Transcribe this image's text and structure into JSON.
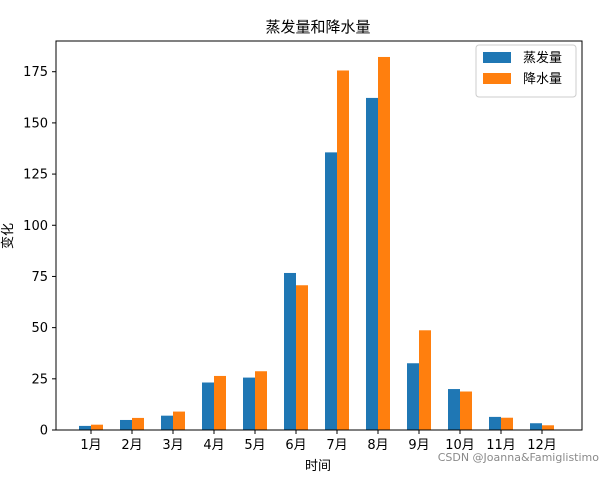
{
  "chart_data": {
    "type": "bar",
    "title": "蒸发量和降水量",
    "xlabel": "时间",
    "ylabel": "变化",
    "categories": [
      "1月",
      "2月",
      "3月",
      "4月",
      "5月",
      "6月",
      "7月",
      "8月",
      "9月",
      "10月",
      "11月",
      "12月"
    ],
    "series": [
      {
        "name": "蒸发量",
        "color": "#1f77b4",
        "values": [
          2.0,
          4.9,
          7.0,
          23.2,
          25.6,
          76.7,
          135.6,
          162.2,
          32.6,
          20.0,
          6.4,
          3.3
        ]
      },
      {
        "name": "降水量",
        "color": "#ff7f0e",
        "values": [
          2.6,
          5.9,
          9.0,
          26.4,
          28.7,
          70.7,
          175.6,
          182.2,
          48.7,
          18.8,
          6.0,
          2.3
        ]
      }
    ],
    "ylim": [
      0,
      190
    ],
    "yticks": [
      0,
      25,
      50,
      75,
      100,
      125,
      150,
      175
    ],
    "grid": false,
    "legend_position": "top-right"
  },
  "watermark": "CSDN @Joanna&Famiglistimo"
}
